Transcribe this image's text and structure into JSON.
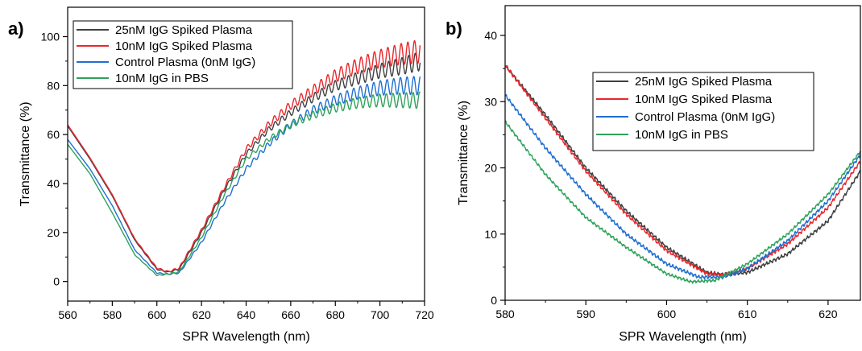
{
  "chart_data": [
    {
      "type": "line",
      "panel_label": "a)",
      "xlabel": "SPR Wavelength (nm)",
      "ylabel": "Transmittance (%)",
      "xlim": [
        560,
        720
      ],
      "ylim": [
        -8,
        112
      ],
      "xticks": [
        560,
        580,
        600,
        620,
        640,
        660,
        680,
        700,
        720
      ],
      "yticks": [
        0,
        20,
        40,
        60,
        80,
        100
      ],
      "legend_position": "top-left",
      "grid": false,
      "series": [
        {
          "name": "25nM IgG Spiked Plasma",
          "color": "#404040",
          "x": [
            560,
            570,
            580,
            590,
            600,
            605,
            610,
            620,
            630,
            640,
            650,
            660,
            670,
            680,
            690,
            700,
            710,
            718
          ],
          "y": [
            63.5,
            50,
            35,
            17,
            5,
            3.8,
            5,
            20,
            37,
            52,
            62,
            69,
            75,
            80,
            83,
            86,
            88,
            90
          ],
          "osc_amp": 4
        },
        {
          "name": "10nM IgG Spiked Plasma",
          "color": "#e8282d",
          "x": [
            560,
            570,
            580,
            590,
            600,
            605,
            610,
            620,
            630,
            640,
            650,
            660,
            670,
            680,
            690,
            700,
            710,
            718
          ],
          "y": [
            64,
            50.5,
            35.5,
            17.5,
            5.5,
            4,
            5.5,
            21,
            38,
            54,
            64,
            72,
            78,
            84,
            88,
            91,
            93,
            94
          ],
          "osc_amp": 5
        },
        {
          "name": "Control Plasma (0nM IgG)",
          "color": "#1f6fd1",
          "x": [
            560,
            570,
            580,
            590,
            600,
            605,
            610,
            620,
            630,
            640,
            650,
            660,
            670,
            680,
            690,
            700,
            710,
            718
          ],
          "y": [
            58,
            46,
            31,
            13,
            3.5,
            3,
            3.5,
            16,
            32,
            46,
            56,
            64,
            70,
            74,
            77,
            79,
            80,
            80
          ],
          "osc_amp": 4
        },
        {
          "name": "10nM IgG in PBS",
          "color": "#2fa25a",
          "x": [
            560,
            570,
            580,
            590,
            600,
            605,
            610,
            620,
            630,
            640,
            650,
            660,
            670,
            680,
            690,
            700,
            710,
            718
          ],
          "y": [
            56,
            44,
            28,
            11,
            2.5,
            3,
            4,
            18,
            35,
            50,
            58,
            64,
            68,
            71,
            73,
            74,
            74,
            74
          ],
          "osc_amp": 3.5
        }
      ]
    },
    {
      "type": "line",
      "panel_label": "b)",
      "xlabel": "SPR Wavelength (nm)",
      "ylabel": "Transmittance (%)",
      "xlim": [
        580,
        624
      ],
      "ylim": [
        0,
        44.5
      ],
      "xticks": [
        580,
        590,
        600,
        610,
        620
      ],
      "yticks": [
        0,
        10,
        20,
        30,
        40
      ],
      "legend_position": "center-right",
      "grid": false,
      "series": [
        {
          "name": "25nM IgG Spiked Plasma",
          "color": "#404040",
          "x": [
            580,
            585,
            590,
            595,
            600,
            605,
            607,
            610,
            615,
            620,
            624
          ],
          "y": [
            35.5,
            28,
            20,
            13.5,
            8,
            4.2,
            3.9,
            4.2,
            7,
            12,
            19.5
          ],
          "osc_amp": 0.3
        },
        {
          "name": "10nM IgG Spiked Plasma",
          "color": "#e8282d",
          "x": [
            580,
            585,
            590,
            595,
            600,
            605,
            607,
            610,
            615,
            620,
            624
          ],
          "y": [
            35.5,
            27.5,
            19.5,
            13,
            7.5,
            4,
            3.8,
            4.8,
            8.5,
            14,
            21
          ],
          "osc_amp": 0.3
        },
        {
          "name": "Control Plasma (0nM IgG)",
          "color": "#1f6fd1",
          "x": [
            580,
            585,
            590,
            595,
            600,
            604,
            607,
            610,
            615,
            620,
            624
          ],
          "y": [
            31,
            23,
            16,
            10,
            5.5,
            3.5,
            3.5,
            4.8,
            9,
            15,
            22
          ],
          "osc_amp": 0.3
        },
        {
          "name": "10nM IgG in PBS",
          "color": "#2fa25a",
          "x": [
            580,
            585,
            590,
            595,
            600,
            603,
            606,
            610,
            615,
            620,
            624
          ],
          "y": [
            27,
            19,
            12.5,
            8,
            4,
            2.8,
            3,
            5.5,
            10,
            16,
            22.5
          ],
          "osc_amp": 0.25
        }
      ]
    }
  ]
}
